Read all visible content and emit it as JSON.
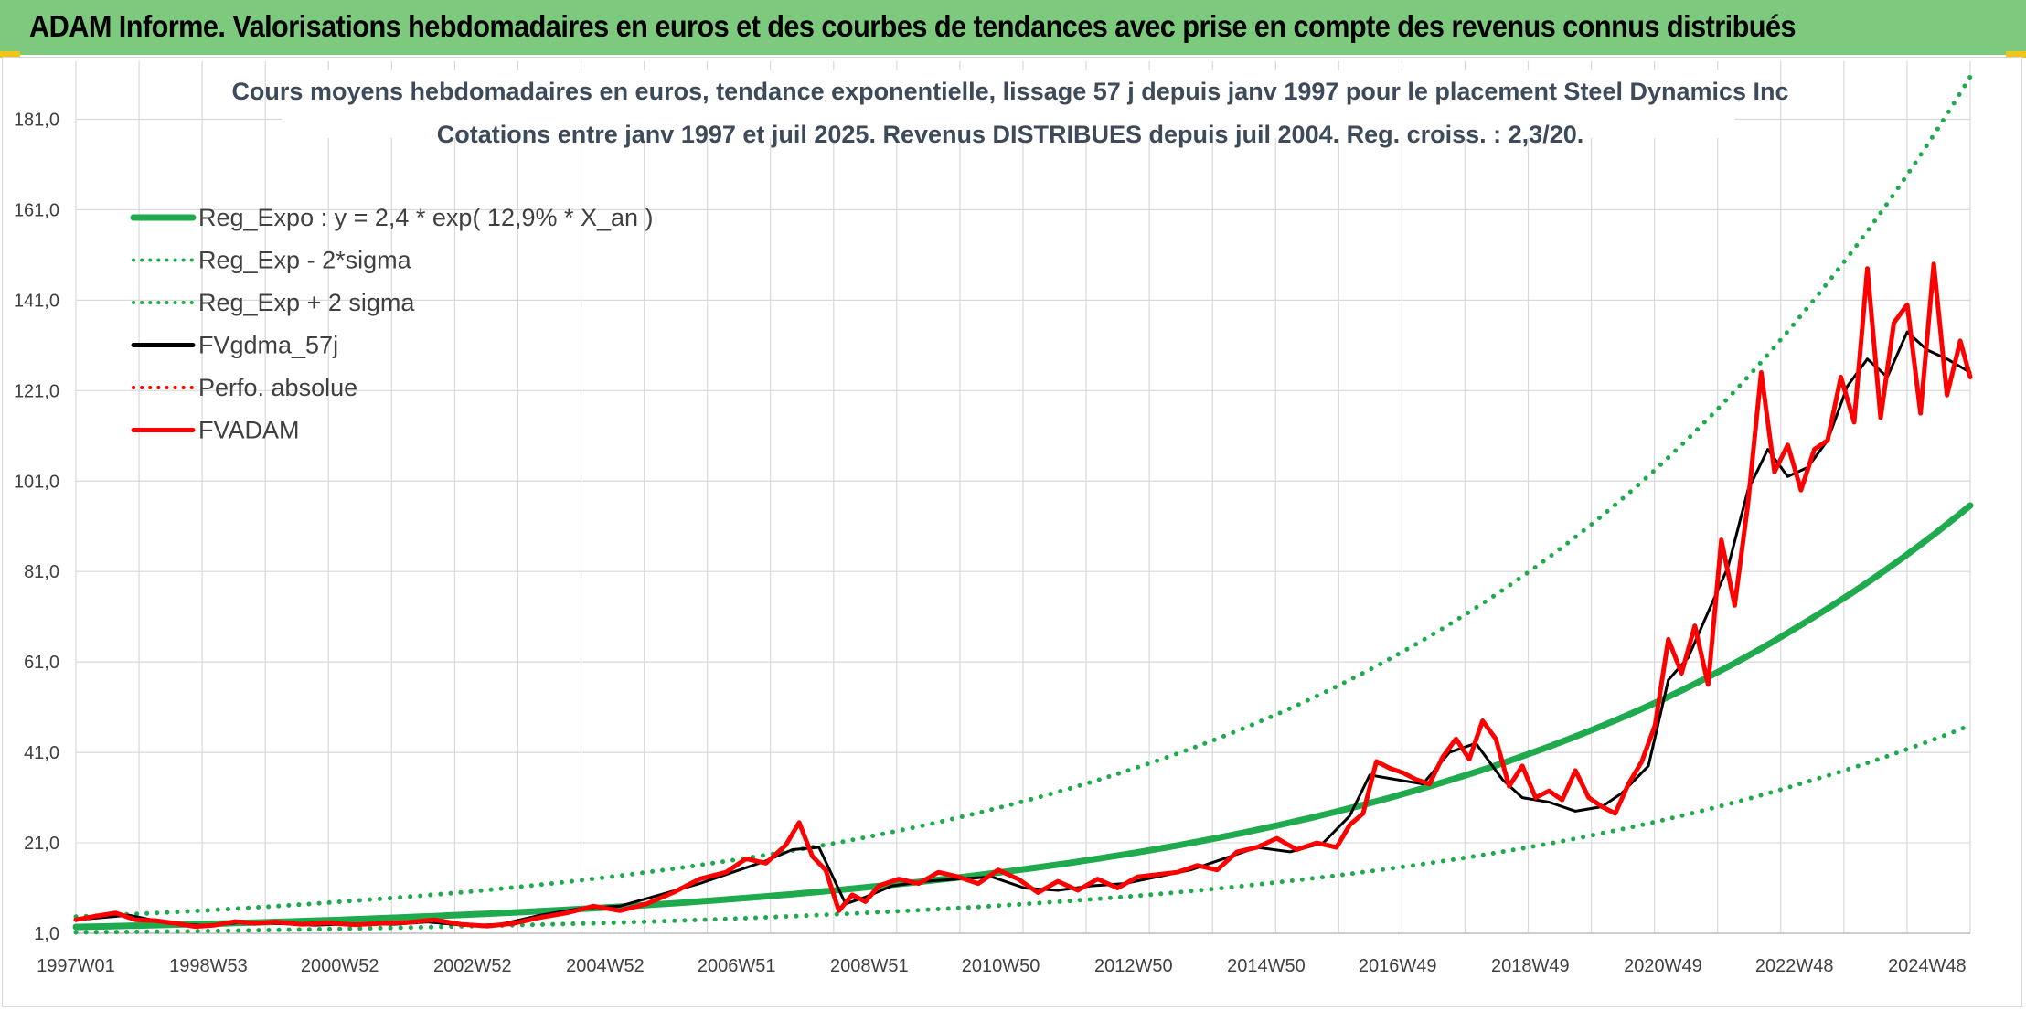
{
  "header": {
    "title": "ADAM Informe. Valorisations hebdomadaires en euros et des courbes de tendances avec prise en compte des revenus connus distribués"
  },
  "colors": {
    "header_bg": "#7dc97d",
    "reg_expo": "#1faa4e",
    "band": "#1faa4e",
    "fvgdma": "#000000",
    "perfo": "#ff0000",
    "fvadam": "#ff0000",
    "grid": "#d9d9d9"
  },
  "chart_data": {
    "type": "line",
    "title_line1": "Cours moyens hebdomadaires en euros, tendance exponentielle, lissage 57 j depuis janv 1997 pour le placement Steel Dynamics Inc",
    "title_line2": "Cotations entre janv 1997 et juil 2025. Revenus DISTRIBUES depuis juil 2004. Reg. croiss. : 2,3/20.",
    "xlabel": "",
    "ylabel": "",
    "ylim": [
      1.0,
      191.0
    ],
    "y_ticks": [
      "1,0",
      "21,0",
      "41,0",
      "61,0",
      "81,0",
      "101,0",
      "121,0",
      "141,0",
      "161,0",
      "181,0"
    ],
    "x_ticks": [
      "1997W01",
      "1998W53",
      "2000W52",
      "2002W52",
      "2004W52",
      "2006W51",
      "2008W51",
      "2010W50",
      "2012W50",
      "2014W50",
      "2016W49",
      "2018W49",
      "2020W49",
      "2022W48",
      "2024W48"
    ],
    "x_range": [
      1997.0,
      2025.55
    ],
    "grid": true,
    "legend_position": "top-left",
    "legend": [
      {
        "label": "Reg_Expo : y = 2,4 * exp( 12,9% *  X_an )",
        "style": "solid",
        "color": "#1faa4e"
      },
      {
        "label": "Reg_Exp - 2*sigma",
        "style": "dotted",
        "color": "#1faa4e"
      },
      {
        "label": "Reg_Exp + 2 sigma",
        "style": "dotted",
        "color": "#1faa4e"
      },
      {
        "label": "FVgdma_57j",
        "style": "solid",
        "color": "#000000"
      },
      {
        "label": "Perfo. absolue",
        "style": "dotted",
        "color": "#ff0000"
      },
      {
        "label": "FVADAM",
        "style": "solid",
        "color": "#ff0000"
      }
    ],
    "series": [
      {
        "name": "Reg_Expo : y = 2,4 * exp( 12,9% *  X_an )",
        "x": [
          1997.0,
          1999.0,
          2001.0,
          2003.0,
          2005.0,
          2007.0,
          2009.0,
          2011.0,
          2013.0,
          2015.0,
          2017.0,
          2019.0,
          2021.0,
          2023.0,
          2025.55
        ],
        "values": [
          2.4,
          3.1,
          4.0,
          5.2,
          6.7,
          8.7,
          11.3,
          14.6,
          18.9,
          24.5,
          31.8,
          41.2,
          53.3,
          69.2,
          95.6
        ]
      },
      {
        "name": "Reg_Exp - 2*sigma",
        "x": [
          1997.0,
          1999.0,
          2001.0,
          2003.0,
          2005.0,
          2007.0,
          2009.0,
          2011.0,
          2013.0,
          2015.0,
          2017.0,
          2019.0,
          2021.0,
          2023.0,
          2025.55
        ],
        "values": [
          1.2,
          1.5,
          2.0,
          2.6,
          3.3,
          4.3,
          5.6,
          7.2,
          9.3,
          12.1,
          15.7,
          20.3,
          26.3,
          34.1,
          47.0
        ]
      },
      {
        "name": "Reg_Exp + 2 sigma",
        "x": [
          1997.0,
          1999.0,
          2001.0,
          2003.0,
          2005.0,
          2007.0,
          2009.0,
          2011.0,
          2013.0,
          2015.0,
          2017.0,
          2019.0,
          2021.0,
          2023.0,
          2025.55
        ],
        "values": [
          4.7,
          6.1,
          8.0,
          10.3,
          13.4,
          17.4,
          22.5,
          29.1,
          37.7,
          48.8,
          63.3,
          82.0,
          106.2,
          137.6,
          190.4
        ]
      },
      {
        "name": "FVgdma_57j",
        "x": [
          1997.0,
          1997.4,
          1997.8,
          1998.4,
          1999.0,
          1999.5,
          2000.0,
          2000.6,
          2001.2,
          2001.8,
          2002.3,
          2002.9,
          2003.4,
          2004.0,
          2004.6,
          2005.2,
          2005.8,
          2006.4,
          2006.9,
          2007.4,
          2007.8,
          2008.2,
          2008.6,
          2008.9,
          2009.3,
          2009.8,
          2010.3,
          2010.8,
          2011.3,
          2011.8,
          2012.3,
          2012.8,
          2013.3,
          2013.8,
          2014.3,
          2014.8,
          2015.3,
          2015.8,
          2016.2,
          2016.5,
          2016.9,
          2017.3,
          2017.7,
          2018.1,
          2018.5,
          2018.8,
          2019.2,
          2019.6,
          2020.0,
          2020.3,
          2020.7,
          2021.0,
          2021.3,
          2021.6,
          2021.9,
          2022.2,
          2022.5,
          2022.8,
          2023.1,
          2023.4,
          2023.7,
          2024.0,
          2024.3,
          2024.6,
          2024.9,
          2025.2,
          2025.55
        ],
        "values": [
          4.0,
          4.5,
          5.0,
          3.2,
          2.7,
          3.4,
          3.2,
          2.8,
          3.1,
          3.0,
          3.5,
          2.7,
          3.0,
          5.0,
          6.5,
          7.0,
          9.5,
          12.0,
          14.5,
          17.0,
          19.5,
          20.0,
          7.5,
          9.0,
          11.5,
          12.5,
          13.0,
          13.5,
          11.0,
          10.5,
          11.5,
          12.0,
          13.5,
          15.0,
          17.5,
          20.0,
          19.0,
          21.0,
          27.0,
          36.0,
          35.0,
          34.0,
          41.0,
          43.0,
          35.0,
          31.0,
          30.0,
          28.0,
          29.0,
          32.0,
          38.0,
          57.0,
          62.0,
          72.0,
          82.0,
          99.0,
          108.0,
          102.0,
          104.0,
          110.0,
          122.0,
          128.0,
          124.0,
          134.0,
          130.0,
          128.0,
          125.0
        ]
      },
      {
        "name": "FVADAM",
        "x": [
          1997.0,
          1997.3,
          1997.6,
          1997.9,
          1998.2,
          1998.5,
          1998.8,
          1999.1,
          1999.4,
          1999.7,
          2000.0,
          2000.4,
          2000.8,
          2001.2,
          2001.6,
          2002.0,
          2002.4,
          2002.8,
          2003.2,
          2003.6,
          2004.0,
          2004.4,
          2004.8,
          2005.2,
          2005.6,
          2006.0,
          2006.4,
          2006.8,
          2007.1,
          2007.4,
          2007.7,
          2007.9,
          2008.1,
          2008.3,
          2008.5,
          2008.7,
          2008.9,
          2009.1,
          2009.4,
          2009.7,
          2010.0,
          2010.3,
          2010.6,
          2010.9,
          2011.2,
          2011.5,
          2011.8,
          2012.1,
          2012.4,
          2012.7,
          2013.0,
          2013.3,
          2013.6,
          2013.9,
          2014.2,
          2014.5,
          2014.8,
          2015.1,
          2015.4,
          2015.7,
          2016.0,
          2016.2,
          2016.4,
          2016.6,
          2016.8,
          2017.0,
          2017.2,
          2017.4,
          2017.6,
          2017.8,
          2018.0,
          2018.2,
          2018.4,
          2018.6,
          2018.8,
          2019.0,
          2019.2,
          2019.4,
          2019.6,
          2019.8,
          2020.0,
          2020.2,
          2020.4,
          2020.6,
          2020.8,
          2021.0,
          2021.2,
          2021.4,
          2021.6,
          2021.8,
          2022.0,
          2022.2,
          2022.4,
          2022.6,
          2022.8,
          2023.0,
          2023.2,
          2023.4,
          2023.6,
          2023.8,
          2024.0,
          2024.2,
          2024.4,
          2024.6,
          2024.8,
          2025.0,
          2025.2,
          2025.4,
          2025.55
        ],
        "values": [
          4.0,
          4.8,
          5.5,
          4.0,
          3.8,
          3.2,
          2.5,
          2.8,
          3.6,
          3.2,
          3.5,
          3.0,
          3.3,
          2.9,
          3.2,
          3.4,
          4.0,
          3.0,
          2.6,
          3.2,
          4.5,
          5.5,
          7.0,
          6.0,
          7.5,
          10.0,
          13.0,
          14.5,
          17.5,
          16.5,
          20.5,
          25.5,
          18.0,
          15.0,
          6.0,
          9.5,
          8.0,
          11.5,
          13.0,
          12.0,
          14.5,
          13.5,
          12.0,
          15.0,
          13.0,
          10.0,
          12.5,
          10.5,
          13.0,
          11.0,
          13.5,
          14.0,
          14.5,
          16.0,
          15.0,
          19.0,
          20.0,
          22.0,
          19.5,
          21.0,
          20.0,
          25.0,
          27.5,
          39.0,
          37.5,
          36.5,
          35.0,
          34.0,
          40.0,
          44.0,
          39.5,
          48.0,
          44.0,
          33.5,
          38.0,
          31.0,
          32.5,
          30.5,
          37.0,
          31.0,
          29.0,
          27.5,
          34.0,
          39.0,
          47.0,
          66.0,
          58.5,
          69.0,
          56.0,
          88.0,
          73.5,
          96.0,
          125.0,
          103.0,
          109.0,
          99.0,
          108.0,
          110.0,
          124.0,
          114.0,
          148.0,
          115.0,
          136.0,
          140.0,
          116.0,
          149.0,
          120.0,
          132.0,
          124.0
        ]
      }
    ]
  }
}
